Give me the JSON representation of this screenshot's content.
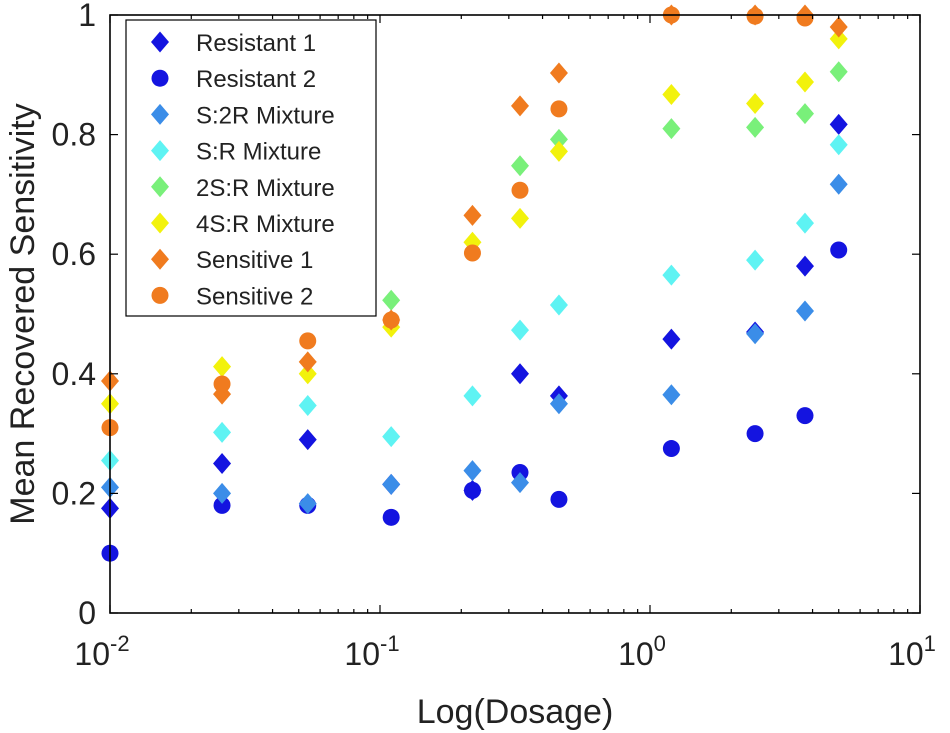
{
  "chart_data": {
    "type": "scatter",
    "xlabel": "Log(Dosage)",
    "ylabel": "Mean Recovered Sensitivity",
    "xscale": "log",
    "xlim": [
      0.01,
      10
    ],
    "ylim": [
      0,
      1
    ],
    "grid": false,
    "legend_position": "top-left",
    "x_ticks": [
      {
        "base": "10",
        "exp": "-2",
        "value": 0.01
      },
      {
        "base": "10",
        "exp": "-1",
        "value": 0.1
      },
      {
        "base": "10",
        "exp": "0",
        "value": 1
      },
      {
        "base": "10",
        "exp": "1",
        "value": 10
      }
    ],
    "y_ticks": [
      {
        "label": "0",
        "value": 0
      },
      {
        "label": "0.2",
        "value": 0.2
      },
      {
        "label": "0.4",
        "value": 0.4
      },
      {
        "label": "0.6",
        "value": 0.6
      },
      {
        "label": "0.8",
        "value": 0.8
      },
      {
        "label": "1",
        "value": 1
      }
    ],
    "series": [
      {
        "name": "Resistant 1",
        "marker": "diamond",
        "color": "#1414e0",
        "points": [
          [
            0.01,
            0.175
          ],
          [
            0.026,
            0.25
          ],
          [
            0.054,
            0.29
          ],
          [
            0.11,
            0.215
          ],
          [
            0.22,
            0.205
          ],
          [
            0.33,
            0.4
          ],
          [
            0.46,
            0.363
          ],
          [
            1.2,
            0.458
          ],
          [
            2.45,
            0.47
          ],
          [
            3.75,
            0.58
          ],
          [
            5.0,
            0.817
          ]
        ]
      },
      {
        "name": "Resistant 2",
        "marker": "circle",
        "color": "#1414e0",
        "points": [
          [
            0.01,
            0.1
          ],
          [
            0.026,
            0.18
          ],
          [
            0.054,
            0.18
          ],
          [
            0.11,
            0.16
          ],
          [
            0.22,
            0.205
          ],
          [
            0.33,
            0.235
          ],
          [
            0.46,
            0.19
          ],
          [
            1.2,
            0.275
          ],
          [
            2.45,
            0.3
          ],
          [
            3.75,
            0.33
          ],
          [
            5.0,
            0.607
          ]
        ]
      },
      {
        "name": "S:2R Mixture",
        "marker": "diamond",
        "color": "#3b8de8",
        "points": [
          [
            0.01,
            0.21
          ],
          [
            0.026,
            0.2
          ],
          [
            0.054,
            0.183
          ],
          [
            0.11,
            0.215
          ],
          [
            0.22,
            0.238
          ],
          [
            0.33,
            0.218
          ],
          [
            0.46,
            0.35
          ],
          [
            1.2,
            0.365
          ],
          [
            2.45,
            0.467
          ],
          [
            3.75,
            0.505
          ],
          [
            5.0,
            0.717
          ]
        ]
      },
      {
        "name": "S:R Mixture",
        "marker": "diamond",
        "color": "#5ef3f3",
        "points": [
          [
            0.01,
            0.255
          ],
          [
            0.026,
            0.302
          ],
          [
            0.054,
            0.347
          ],
          [
            0.11,
            0.295
          ],
          [
            0.22,
            0.363
          ],
          [
            0.33,
            0.473
          ],
          [
            0.46,
            0.515
          ],
          [
            1.2,
            0.565
          ],
          [
            2.45,
            0.59
          ],
          [
            3.75,
            0.652
          ],
          [
            5.0,
            0.783
          ]
        ]
      },
      {
        "name": "2S:R Mixture",
        "marker": "diamond",
        "color": "#79f07a",
        "points": [
          [
            0.11,
            0.523
          ],
          [
            0.33,
            0.748
          ],
          [
            0.46,
            0.792
          ],
          [
            1.2,
            0.81
          ],
          [
            2.45,
            0.812
          ],
          [
            3.75,
            0.835
          ],
          [
            5.0,
            0.905
          ]
        ]
      },
      {
        "name": "4S:R Mixture",
        "marker": "diamond",
        "color": "#f2f20c",
        "points": [
          [
            0.01,
            0.35
          ],
          [
            0.026,
            0.412
          ],
          [
            0.054,
            0.4
          ],
          [
            0.11,
            0.478
          ],
          [
            0.22,
            0.62
          ],
          [
            0.33,
            0.66
          ],
          [
            0.46,
            0.772
          ],
          [
            1.2,
            0.867
          ],
          [
            2.45,
            0.852
          ],
          [
            3.75,
            0.888
          ],
          [
            5.0,
            0.96
          ]
        ]
      },
      {
        "name": "Sensitive 1",
        "marker": "diamond",
        "color": "#f07b1f",
        "points": [
          [
            0.01,
            0.388
          ],
          [
            0.026,
            0.366
          ],
          [
            0.054,
            0.42
          ],
          [
            0.11,
            0.49
          ],
          [
            0.22,
            0.665
          ],
          [
            0.33,
            0.848
          ],
          [
            0.46,
            0.903
          ],
          [
            1.2,
            1.0
          ],
          [
            2.45,
            1.0
          ],
          [
            3.75,
            1.0
          ],
          [
            5.0,
            0.98
          ]
        ]
      },
      {
        "name": "Sensitive 2",
        "marker": "circle",
        "color": "#f07b1f",
        "points": [
          [
            0.01,
            0.31
          ],
          [
            0.026,
            0.383
          ],
          [
            0.054,
            0.455
          ],
          [
            0.11,
            0.49
          ],
          [
            0.22,
            0.602
          ],
          [
            0.33,
            0.707
          ],
          [
            0.46,
            0.843
          ],
          [
            1.2,
            1.0
          ],
          [
            2.45,
            0.998
          ],
          [
            3.75,
            0.995
          ]
        ]
      }
    ]
  }
}
